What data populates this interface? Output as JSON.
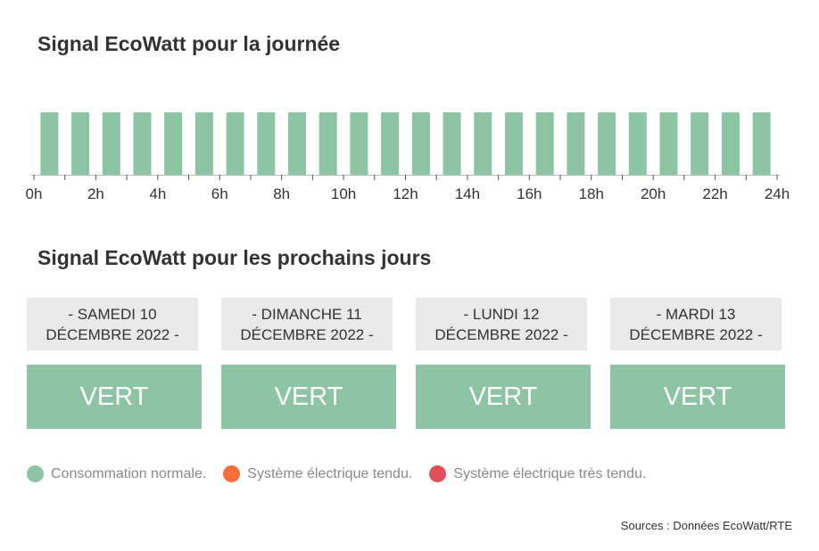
{
  "title_day": "Signal EcoWatt pour la journée",
  "title_next": "Signal EcoWatt pour les prochains jours",
  "chart_data": {
    "type": "bar",
    "title": "Signal EcoWatt pour la journée",
    "x_ticks": [
      "0h",
      "2h",
      "4h",
      "6h",
      "8h",
      "10h",
      "12h",
      "14h",
      "16h",
      "18h",
      "20h",
      "22h",
      "24h"
    ],
    "hours": [
      0,
      1,
      2,
      3,
      4,
      5,
      6,
      7,
      8,
      9,
      10,
      11,
      12,
      13,
      14,
      15,
      16,
      17,
      18,
      19,
      20,
      21,
      22,
      23
    ],
    "values": [
      "VERT",
      "VERT",
      "VERT",
      "VERT",
      "VERT",
      "VERT",
      "VERT",
      "VERT",
      "VERT",
      "VERT",
      "VERT",
      "VERT",
      "VERT",
      "VERT",
      "VERT",
      "VERT",
      "VERT",
      "VERT",
      "VERT",
      "VERT",
      "VERT",
      "VERT",
      "VERT",
      "VERT"
    ],
    "xlim": [
      0,
      24
    ]
  },
  "days": [
    {
      "line1": "- SAMEDI 10",
      "line2": "DÉCEMBRE 2022 -",
      "status": "VERT"
    },
    {
      "line1": "- DIMANCHE 11",
      "line2": "DÉCEMBRE 2022 -",
      "status": "VERT"
    },
    {
      "line1": "- LUNDI 12",
      "line2": "DÉCEMBRE 2022 -",
      "status": "VERT"
    },
    {
      "line1": "- MARDI 13",
      "line2": "DÉCEMBRE 2022 -",
      "status": "VERT"
    }
  ],
  "legend": [
    {
      "label": "Consommation normale.",
      "color": "#8dc4a4"
    },
    {
      "label": "Système électrique tendu.",
      "color": "#f56f3a"
    },
    {
      "label": "Système électrique très tendu.",
      "color": "#e0505a"
    }
  ],
  "colors": {
    "VERT": "#8dc4a4",
    "header_bg": "#e9e9e9"
  },
  "source": "Sources : Données EcoWatt/RTE"
}
